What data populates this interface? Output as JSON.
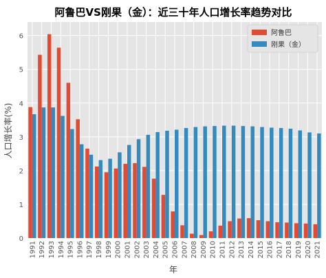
{
  "chart_data": {
    "type": "bar",
    "title": "阿鲁巴VS刚果（金）：近三十年人口增长率趋势对比",
    "xlabel": "年",
    "ylabel": "人口增长率(%)",
    "ylim": [
      0,
      6.4
    ],
    "yticks": [
      0,
      1,
      2,
      3,
      4,
      5,
      6
    ],
    "grid": true,
    "legend_position": "top-right",
    "categories": [
      "1991",
      "1992",
      "1993",
      "1994",
      "1995",
      "1996",
      "1997",
      "1998",
      "1999",
      "2000",
      "2001",
      "2002",
      "2003",
      "2004",
      "2005",
      "2006",
      "2007",
      "2008",
      "2009",
      "2010",
      "2011",
      "2012",
      "2013",
      "2014",
      "2015",
      "2016",
      "2017",
      "2018",
      "2019",
      "2020",
      "2021"
    ],
    "series": [
      {
        "name": "阿鲁巴",
        "color": "#e24a33",
        "values": [
          3.88,
          5.43,
          6.04,
          5.64,
          4.6,
          3.52,
          2.65,
          2.12,
          1.95,
          2.06,
          2.2,
          2.22,
          2.11,
          1.76,
          1.28,
          0.79,
          0.38,
          0.13,
          0.09,
          0.2,
          0.37,
          0.5,
          0.58,
          0.59,
          0.53,
          0.5,
          0.47,
          0.46,
          0.44,
          0.43,
          0.41
        ]
      },
      {
        "name": "刚果（金）",
        "color": "#348abd",
        "values": [
          3.67,
          3.87,
          3.87,
          3.62,
          3.23,
          2.78,
          2.47,
          2.31,
          2.35,
          2.54,
          2.76,
          2.93,
          3.06,
          3.14,
          3.18,
          3.21,
          3.26,
          3.29,
          3.31,
          3.32,
          3.33,
          3.33,
          3.32,
          3.31,
          3.29,
          3.27,
          3.26,
          3.24,
          3.19,
          3.13,
          3.1
        ]
      }
    ]
  }
}
